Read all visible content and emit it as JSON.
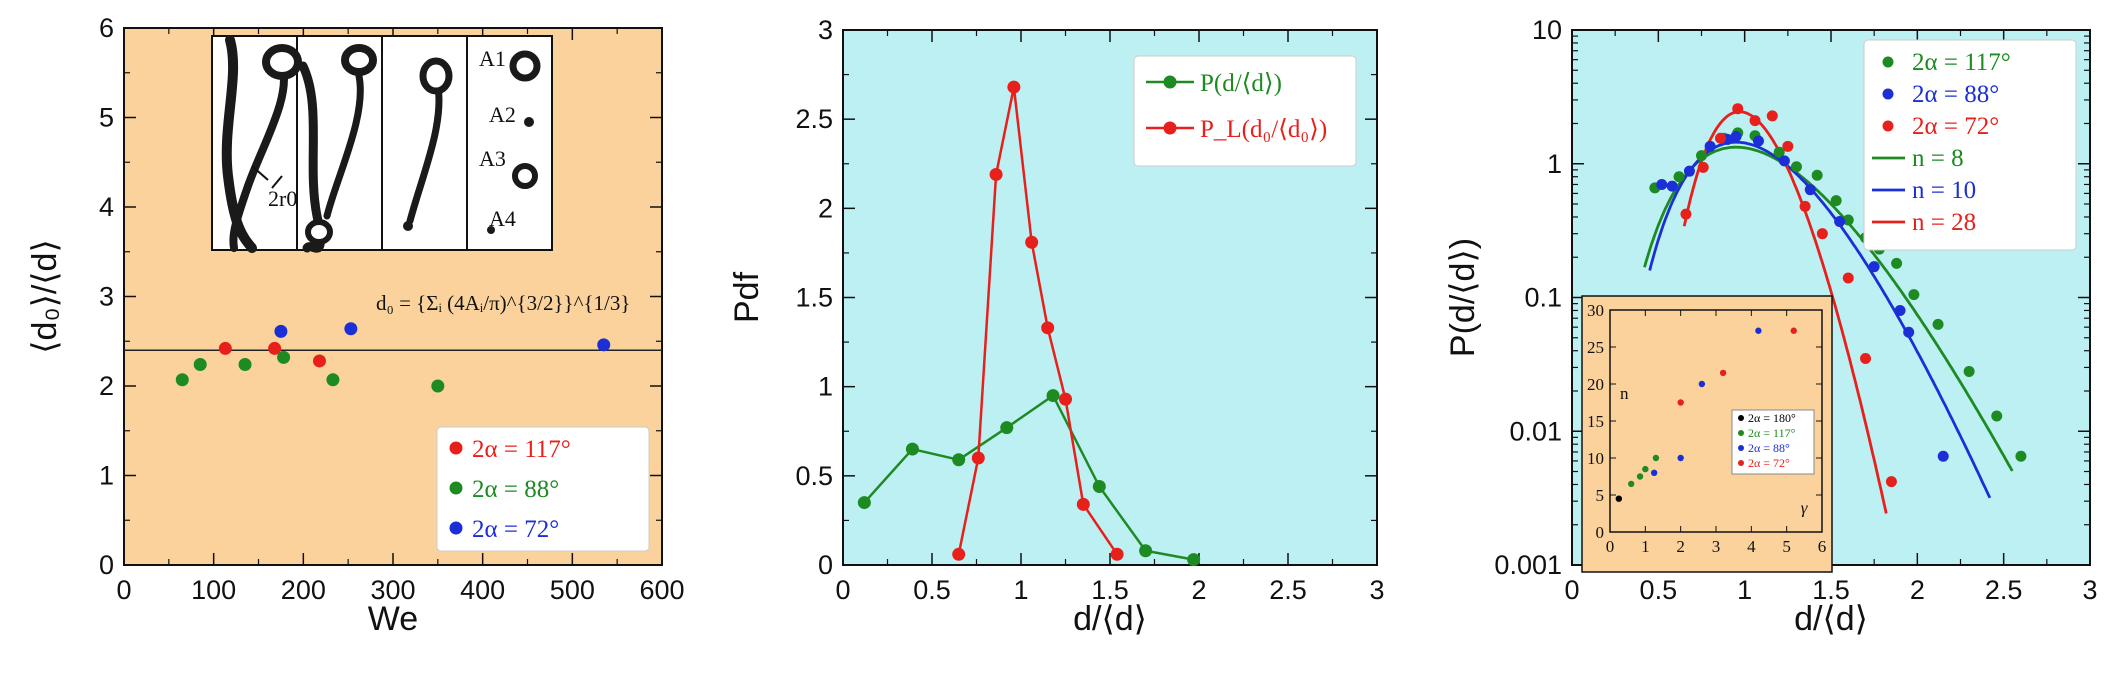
{
  "colors": {
    "red": "#e8201c",
    "green": "#1e8a22",
    "blue": "#1c2fd6",
    "black": "#000000",
    "panel1_bg": "#fbd29b",
    "panel_bg": "#bdf0f3",
    "inset_bg": "#fbd29b"
  },
  "chart_data": [
    {
      "type": "scatter",
      "panel": "left",
      "xlabel": "We",
      "ylabel": "⟨d₀⟩/⟨d⟩",
      "xlim": [
        0,
        600
      ],
      "ylim": [
        0,
        6
      ],
      "xticks": [
        "0",
        "100",
        "200",
        "300",
        "400",
        "500",
        "600"
      ],
      "yticks": [
        "0",
        "1",
        "2",
        "3",
        "4",
        "5",
        "6"
      ],
      "reference_line_y": 2.4,
      "formula": "d₀ = {Σᵢ (4Aᵢ/π)^{3/2}}^{1/3}",
      "photo_labels": [
        "A1",
        "A2",
        "A3",
        "A4",
        "2r0"
      ],
      "legend_position": "bottom-right",
      "series": [
        {
          "name": "2α = 117°",
          "color": "#e8201c",
          "points": [
            [
              113,
              2.42
            ],
            [
              168,
              2.42
            ],
            [
              218,
              2.28
            ]
          ]
        },
        {
          "name": "2α = 88°",
          "color": "#1e8a22",
          "points": [
            [
              65,
              2.07
            ],
            [
              85,
              2.24
            ],
            [
              135,
              2.24
            ],
            [
              178,
              2.32
            ],
            [
              233,
              2.07
            ],
            [
              350,
              2.0
            ]
          ]
        },
        {
          "name": "2α = 72°",
          "color": "#1c2fd6",
          "points": [
            [
              175,
              2.61
            ],
            [
              253,
              2.64
            ],
            [
              535,
              2.46
            ]
          ]
        }
      ]
    },
    {
      "type": "line",
      "panel": "middle",
      "xlabel": "d/⟨d⟩",
      "ylabel": "Pdf",
      "xlim": [
        0,
        3
      ],
      "ylim": [
        0,
        3
      ],
      "xticks": [
        "0",
        "0.5",
        "1",
        "1.5",
        "2",
        "2.5",
        "3"
      ],
      "yticks": [
        "0",
        "0.5",
        "1",
        "1.5",
        "2",
        "2.5",
        "3"
      ],
      "legend_position": "top-right",
      "series": [
        {
          "name": "P(d/⟨d⟩)",
          "color": "#1e8a22",
          "points": [
            [
              0.12,
              0.35
            ],
            [
              0.39,
              0.65
            ],
            [
              0.65,
              0.59
            ],
            [
              0.92,
              0.77
            ],
            [
              1.18,
              0.95
            ],
            [
              1.44,
              0.44
            ],
            [
              1.7,
              0.08
            ],
            [
              1.97,
              0.03
            ]
          ]
        },
        {
          "name": "P_L(d₀/⟨d₀⟩)",
          "color": "#e8201c",
          "points": [
            [
              0.65,
              0.06
            ],
            [
              0.76,
              0.6
            ],
            [
              0.86,
              2.19
            ],
            [
              0.96,
              2.68
            ],
            [
              1.06,
              1.81
            ],
            [
              1.15,
              1.33
            ],
            [
              1.25,
              0.93
            ],
            [
              1.35,
              0.34
            ],
            [
              1.54,
              0.06
            ]
          ]
        }
      ]
    },
    {
      "type": "scatter",
      "panel": "right",
      "xlabel": "d/⟨d⟩",
      "ylabel": "P(d/⟨d⟩)",
      "xlim": [
        0,
        3
      ],
      "ylim": [
        0.001,
        10
      ],
      "yscale": "log",
      "xticks": [
        "0",
        "0.5",
        "1",
        "1.5",
        "2",
        "2.5",
        "3"
      ],
      "yticks": [
        "0.001",
        "0.01",
        "0.1",
        "1",
        "10"
      ],
      "legend_position": "top-right",
      "legend": [
        {
          "label": "2α = 117°",
          "color": "#1e8a22",
          "kind": "point"
        },
        {
          "label": "2α = 88°",
          "color": "#1c2fd6",
          "kind": "point"
        },
        {
          "label": "2α = 72°",
          "color": "#e8201c",
          "kind": "point"
        },
        {
          "label": "n = 8",
          "color": "#1e8a22",
          "kind": "line"
        },
        {
          "label": "n = 10",
          "color": "#1c2fd6",
          "kind": "line"
        },
        {
          "label": "n = 28",
          "color": "#e8201c",
          "kind": "line"
        }
      ],
      "series": [
        {
          "name": "2α = 117°",
          "color": "#1e8a22",
          "points": [
            [
              0.48,
              0.66
            ],
            [
              0.62,
              0.8
            ],
            [
              0.75,
              1.15
            ],
            [
              0.88,
              1.55
            ],
            [
              0.96,
              1.7
            ],
            [
              1.06,
              1.62
            ],
            [
              1.2,
              1.22
            ],
            [
              1.3,
              0.95
            ],
            [
              1.42,
              0.82
            ],
            [
              1.53,
              0.53
            ],
            [
              1.6,
              0.38
            ],
            [
              1.7,
              0.28
            ],
            [
              1.78,
              0.23
            ],
            [
              1.88,
              0.18
            ],
            [
              1.98,
              0.105
            ],
            [
              2.12,
              0.063
            ],
            [
              2.3,
              0.028
            ],
            [
              2.46,
              0.013
            ],
            [
              2.6,
              0.0065
            ]
          ]
        },
        {
          "name": "2α = 88°",
          "color": "#1c2fd6",
          "points": [
            [
              0.52,
              0.7
            ],
            [
              0.58,
              0.68
            ],
            [
              0.68,
              0.88
            ],
            [
              0.8,
              1.35
            ],
            [
              0.9,
              1.52
            ],
            [
              0.95,
              1.6
            ],
            [
              1.08,
              1.48
            ],
            [
              1.23,
              1.05
            ],
            [
              1.38,
              0.64
            ],
            [
              1.55,
              0.37
            ],
            [
              1.75,
              0.17
            ],
            [
              1.9,
              0.08
            ],
            [
              1.95,
              0.055
            ],
            [
              2.15,
              0.0065
            ]
          ]
        },
        {
          "name": "2α = 72°",
          "color": "#e8201c",
          "points": [
            [
              0.66,
              0.42
            ],
            [
              0.76,
              0.94
            ],
            [
              0.86,
              1.55
            ],
            [
              0.96,
              2.58
            ],
            [
              1.06,
              2.1
            ],
            [
              1.16,
              2.28
            ],
            [
              1.25,
              1.35
            ],
            [
              1.35,
              0.48
            ],
            [
              1.45,
              0.3
            ],
            [
              1.6,
              0.14
            ],
            [
              1.7,
              0.035
            ],
            [
              1.85,
              0.0042
            ]
          ]
        }
      ],
      "fits": [
        {
          "name": "n = 8",
          "color": "#1e8a22",
          "n": 8,
          "peak_x": 0.95,
          "peak_y": 1.33,
          "x_range": [
            0.42,
            2.55
          ]
        },
        {
          "name": "n = 10",
          "color": "#1c2fd6",
          "n": 10,
          "peak_x": 0.95,
          "peak_y": 1.45,
          "x_range": [
            0.45,
            2.42
          ]
        },
        {
          "name": "n = 28",
          "color": "#e8201c",
          "n": 28,
          "peak_x": 0.97,
          "peak_y": 2.45,
          "x_range": [
            0.65,
            1.82
          ]
        }
      ],
      "inset": {
        "xlabel": "γ",
        "ylabel": "n",
        "xlim": [
          0,
          6
        ],
        "ylim": [
          0,
          30
        ],
        "xticks": [
          "0",
          "1",
          "2",
          "3",
          "4",
          "5",
          "6"
        ],
        "yticks": [
          "0",
          "5",
          "10",
          "15",
          "20",
          "25",
          "30"
        ],
        "series": [
          {
            "name": "2α = 180°",
            "color": "#000000",
            "points": [
              [
                0.25,
                4.5
              ]
            ]
          },
          {
            "name": "2α = 117°",
            "color": "#1e8a22",
            "points": [
              [
                0.6,
                6.5
              ],
              [
                0.85,
                7.5
              ],
              [
                1.0,
                8.5
              ],
              [
                1.3,
                10.0
              ]
            ]
          },
          {
            "name": "2α = 88°",
            "color": "#1c2fd6",
            "points": [
              [
                1.25,
                8.0
              ],
              [
                2.0,
                10.0
              ],
              [
                2.6,
                20.0
              ],
              [
                4.2,
                27.2
              ]
            ]
          },
          {
            "name": "2α = 72°",
            "color": "#e8201c",
            "points": [
              [
                2.0,
                17.5
              ],
              [
                3.2,
                21.5
              ],
              [
                5.2,
                27.2
              ]
            ]
          }
        ]
      }
    }
  ]
}
